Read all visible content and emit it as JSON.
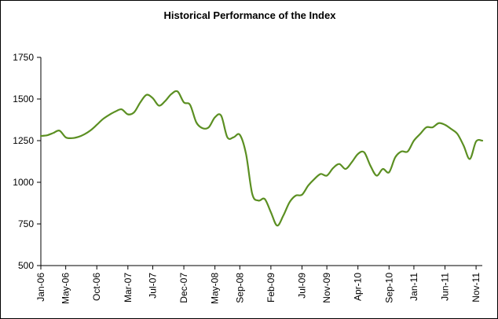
{
  "chart_data": {
    "type": "line",
    "title": "Historical Performance of the Index",
    "xlabel": "",
    "ylabel": "",
    "ylim": [
      500,
      1750
    ],
    "yticks": [
      500,
      750,
      1000,
      1250,
      1500,
      1750
    ],
    "xlim": [
      "2006-01",
      "2011-12"
    ],
    "xticks": [
      {
        "label": "Jan-06",
        "date": "2006-01"
      },
      {
        "label": "May-06",
        "date": "2006-05"
      },
      {
        "label": "Oct-06",
        "date": "2006-10"
      },
      {
        "label": "Mar-07",
        "date": "2007-03"
      },
      {
        "label": "Jul-07",
        "date": "2007-07"
      },
      {
        "label": "Dec-07",
        "date": "2007-12"
      },
      {
        "label": "May-08",
        "date": "2008-05"
      },
      {
        "label": "Sep-08",
        "date": "2008-09"
      },
      {
        "label": "Feb-09",
        "date": "2009-02"
      },
      {
        "label": "Jul-09",
        "date": "2009-07"
      },
      {
        "label": "Nov-09",
        "date": "2009-11"
      },
      {
        "label": "Apr-10",
        "date": "2010-04"
      },
      {
        "label": "Sep-10",
        "date": "2010-09"
      },
      {
        "label": "Jan-11",
        "date": "2011-01"
      },
      {
        "label": "Jun-11",
        "date": "2011-06"
      },
      {
        "label": "Nov-11",
        "date": "2011-11"
      }
    ],
    "grid": false,
    "legend": "none",
    "series": [
      {
        "color": "#5b8f22",
        "x": [
          "2006-01",
          "2006-02",
          "2006-03",
          "2006-04",
          "2006-05",
          "2006-06",
          "2006-07",
          "2006-08",
          "2006-09",
          "2006-10",
          "2006-11",
          "2006-12",
          "2007-01",
          "2007-02",
          "2007-03",
          "2007-04",
          "2007-05",
          "2007-06",
          "2007-07",
          "2007-08",
          "2007-09",
          "2007-10",
          "2007-11",
          "2007-12",
          "2008-01",
          "2008-02",
          "2008-03",
          "2008-04",
          "2008-05",
          "2008-06",
          "2008-07",
          "2008-08",
          "2008-09",
          "2008-10",
          "2008-11",
          "2008-12",
          "2009-01",
          "2009-02",
          "2009-03",
          "2009-04",
          "2009-05",
          "2009-06",
          "2009-07",
          "2009-08",
          "2009-09",
          "2009-10",
          "2009-11",
          "2009-12",
          "2010-01",
          "2010-02",
          "2010-03",
          "2010-04",
          "2010-05",
          "2010-06",
          "2010-07",
          "2010-08",
          "2010-09",
          "2010-10",
          "2010-11",
          "2010-12",
          "2011-01",
          "2011-02",
          "2011-03",
          "2011-04",
          "2011-05",
          "2011-06",
          "2011-07",
          "2011-08",
          "2011-09",
          "2011-10",
          "2011-11",
          "2011-12"
        ],
        "values": [
          1278,
          1282,
          1296,
          1310,
          1270,
          1265,
          1272,
          1288,
          1312,
          1345,
          1380,
          1405,
          1425,
          1438,
          1408,
          1420,
          1480,
          1525,
          1505,
          1460,
          1488,
          1530,
          1545,
          1480,
          1465,
          1360,
          1325,
          1330,
          1390,
          1400,
          1270,
          1270,
          1285,
          1170,
          930,
          890,
          900,
          820,
          740,
          800,
          880,
          920,
          925,
          980,
          1020,
          1050,
          1040,
          1085,
          1110,
          1080,
          1120,
          1170,
          1180,
          1100,
          1040,
          1080,
          1060,
          1150,
          1185,
          1185,
          1250,
          1290,
          1330,
          1330,
          1355,
          1345,
          1320,
          1290,
          1220,
          1140,
          1245,
          1250
        ]
      }
    ]
  }
}
